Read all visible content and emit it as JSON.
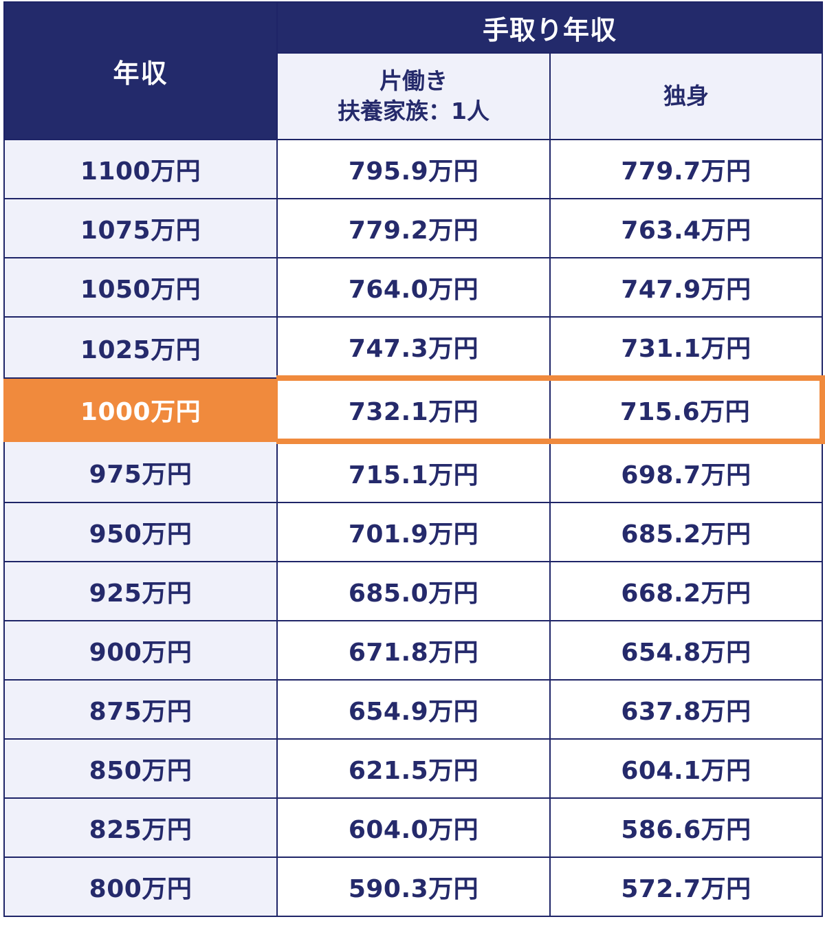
{
  "header": {
    "year_income": "年収",
    "takehome_group": "手取り年収",
    "col_single_earner_line1": "片働き",
    "col_single_earner_line2": "扶養家族：1人",
    "col_single": "独身"
  },
  "highlight_color": "#f08a3d",
  "navy_color": "#232a6b",
  "rows": [
    {
      "income": "1100万円",
      "single_earner": "795.9万円",
      "single": "779.7万円",
      "highlight": false
    },
    {
      "income": "1075万円",
      "single_earner": "779.2万円",
      "single": "763.4万円",
      "highlight": false
    },
    {
      "income": "1050万円",
      "single_earner": "764.0万円",
      "single": "747.9万円",
      "highlight": false
    },
    {
      "income": "1025万円",
      "single_earner": "747.3万円",
      "single": "731.1万円",
      "highlight": false
    },
    {
      "income": "1000万円",
      "single_earner": "732.1万円",
      "single": "715.6万円",
      "highlight": true
    },
    {
      "income": "975万円",
      "single_earner": "715.1万円",
      "single": "698.7万円",
      "highlight": false
    },
    {
      "income": "950万円",
      "single_earner": "701.9万円",
      "single": "685.2万円",
      "highlight": false
    },
    {
      "income": "925万円",
      "single_earner": "685.0万円",
      "single": "668.2万円",
      "highlight": false
    },
    {
      "income": "900万円",
      "single_earner": "671.8万円",
      "single": "654.8万円",
      "highlight": false
    },
    {
      "income": "875万円",
      "single_earner": "654.9万円",
      "single": "637.8万円",
      "highlight": false
    },
    {
      "income": "850万円",
      "single_earner": "621.5万円",
      "single": "604.1万円",
      "highlight": false
    },
    {
      "income": "825万円",
      "single_earner": "604.0万円",
      "single": "586.6万円",
      "highlight": false
    },
    {
      "income": "800万円",
      "single_earner": "590.3万円",
      "single": "572.7万円",
      "highlight": false
    }
  ]
}
